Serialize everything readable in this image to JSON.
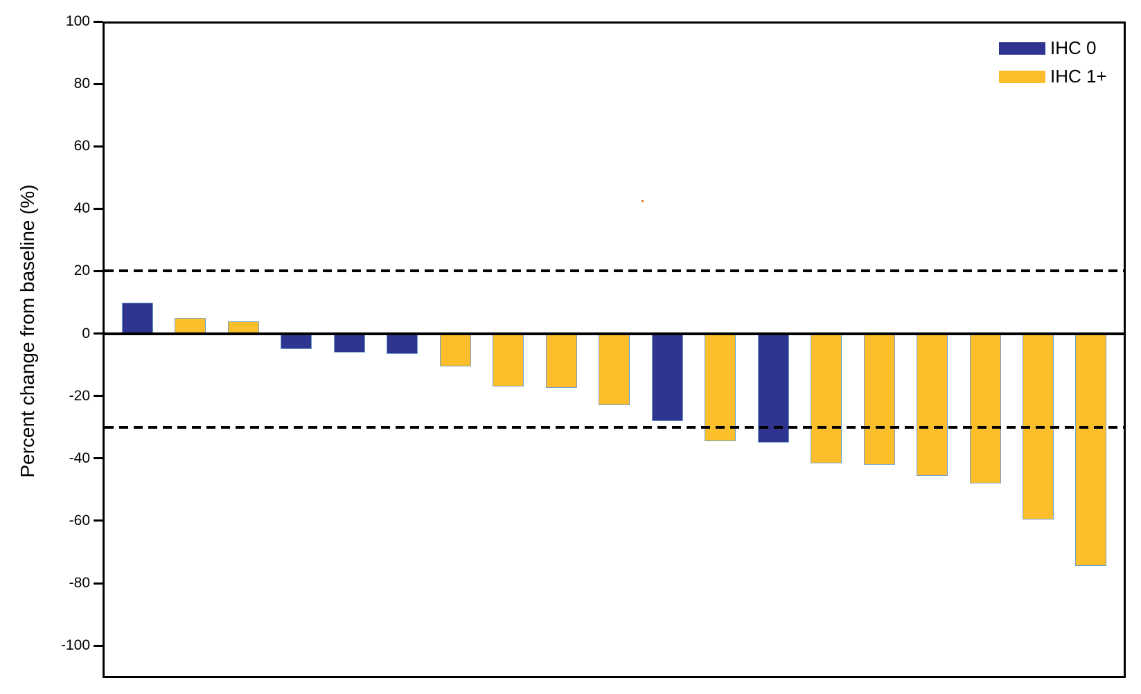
{
  "figure": {
    "legend": [
      {
        "label": "IHC 0",
        "color": "#2E3490"
      },
      {
        "label": "IHC 1+",
        "color": "#FDBE2C"
      }
    ]
  },
  "chart_data": {
    "type": "bar",
    "subtype": "waterfall",
    "title": "",
    "xlabel": "",
    "ylabel": "Percent change from baseline (%)",
    "ylim": [
      -110,
      100
    ],
    "yticks": [
      100,
      80,
      60,
      40,
      20,
      0,
      -20,
      -40,
      -60,
      -80,
      -100
    ],
    "reference_lines": [
      20,
      -30
    ],
    "reference_line_style": "dashed",
    "grid": false,
    "legend_position": "top-right",
    "series_key": "IHC status",
    "bars": [
      {
        "group": "IHC 0",
        "value": 10
      },
      {
        "group": "IHC 1+",
        "value": 5
      },
      {
        "group": "IHC 1+",
        "value": 4
      },
      {
        "group": "IHC 0",
        "value": -5
      },
      {
        "group": "IHC 0",
        "value": -6
      },
      {
        "group": "IHC 0",
        "value": -6.5
      },
      {
        "group": "IHC 1+",
        "value": -10.5
      },
      {
        "group": "IHC 1+",
        "value": -17
      },
      {
        "group": "IHC 1+",
        "value": -17.5
      },
      {
        "group": "IHC 1+",
        "value": -23
      },
      {
        "group": "IHC 0",
        "value": -28
      },
      {
        "group": "IHC 1+",
        "value": -34.5
      },
      {
        "group": "IHC 0",
        "value": -35
      },
      {
        "group": "IHC 1+",
        "value": -41.5
      },
      {
        "group": "IHC 1+",
        "value": -42
      },
      {
        "group": "IHC 1+",
        "value": -45.5
      },
      {
        "group": "IHC 1+",
        "value": -48
      },
      {
        "group": "IHC 1+",
        "value": -59.5
      },
      {
        "group": "IHC 1+",
        "value": -74.5
      }
    ],
    "colors": {
      "IHC 0": "#2E3490",
      "IHC 1+": "#FDBE2C",
      "bar_outline": "#6FA0C8",
      "axis": "#000000"
    }
  }
}
